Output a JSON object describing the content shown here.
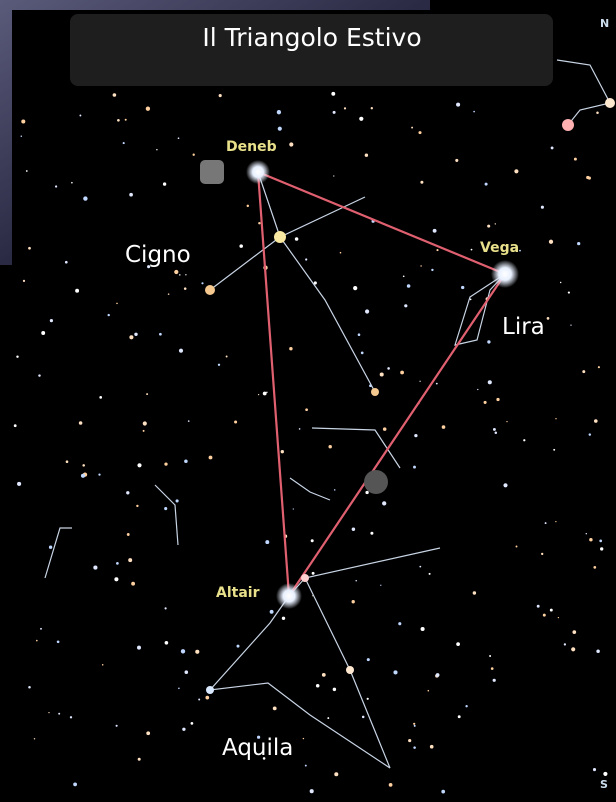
{
  "title": "Il Triangolo Estivo",
  "stars": {
    "deneb": "Deneb",
    "vega": "Vega",
    "altair": "Altair"
  },
  "constellations": {
    "cygnus": "Cigno",
    "lyra": "Lira",
    "aquila": "Aquila"
  },
  "compass": {
    "north": "N",
    "south": "S"
  }
}
